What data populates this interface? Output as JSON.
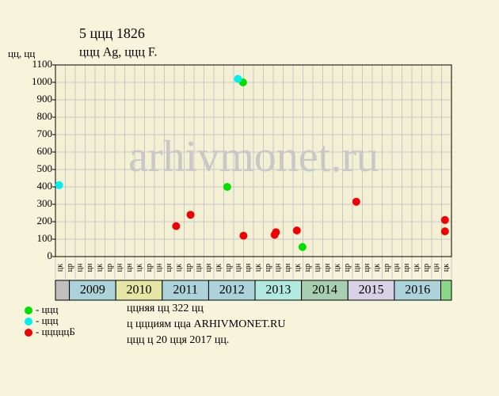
{
  "chart_data": {
    "type": "scatter",
    "title": "5 ццц 1826",
    "subtitle": "ццц Ag, ццц F.",
    "y_label": "цц, цц",
    "watermark": "arhivmonet.ru",
    "ylim": [
      0,
      1100
    ],
    "yticks": [
      0,
      100,
      200,
      300,
      400,
      500,
      600,
      700,
      800,
      900,
      1000,
      1100
    ],
    "xlim": [
      2008.7,
      2017.23
    ],
    "years": [
      {
        "label": "2009",
        "start": 2009,
        "color": "#acd3d9"
      },
      {
        "label": "2010",
        "start": 2010,
        "color": "#e6e6a6"
      },
      {
        "label": "2011",
        "start": 2011,
        "color": "#acd3d9"
      },
      {
        "label": "2012",
        "start": 2012,
        "color": "#acd3d9"
      },
      {
        "label": "2013",
        "start": 2013,
        "color": "#b2eadf"
      },
      {
        "label": "2014",
        "start": 2014,
        "color": "#a8cfb2"
      },
      {
        "label": "2015",
        "start": 2015,
        "color": "#d9d2e6"
      },
      {
        "label": "2016",
        "start": 2016,
        "color": "#acd3d9"
      }
    ],
    "column_labels": [
      "цк",
      "цр",
      "цн",
      "цн",
      "цк",
      "цр",
      "цн",
      "цн",
      "цк",
      "цр",
      "цн",
      "цн",
      "цк",
      "цр",
      "цн",
      "цн",
      "цк",
      "цр",
      "цн",
      "цн",
      "цк",
      "цр",
      "цн",
      "цн",
      "цк",
      "цр",
      "цн",
      "цн",
      "цк",
      "цр",
      "цн",
      "цн",
      "цк",
      "цр",
      "цн",
      "цн",
      "цк",
      "цр",
      "цн",
      "цк"
    ],
    "series": [
      {
        "name": "- ццц",
        "color": "#00e000",
        "x": [
          2012.74,
          2012.4,
          2014.02
        ],
        "values": [
          1000,
          400,
          55
        ]
      },
      {
        "name": "- ццц",
        "color": "#00f0f0",
        "x": [
          2008.78,
          2012.63
        ],
        "values": [
          410,
          1020
        ]
      },
      {
        "name": "- цццццБ",
        "color": "#f00000",
        "x": [
          2011.3,
          2011.61,
          2012.75,
          2013.42,
          2013.45,
          2013.9,
          2015.18,
          2017.09,
          2017.09
        ],
        "values": [
          175,
          240,
          120,
          125,
          140,
          150,
          315,
          210,
          145
        ]
      }
    ],
    "notes": [
      "ццняя цц 322 цц",
      "ц ццциям цца ARHIVMONET.RU",
      "ццц ц 20 цця 2017 цц."
    ]
  }
}
